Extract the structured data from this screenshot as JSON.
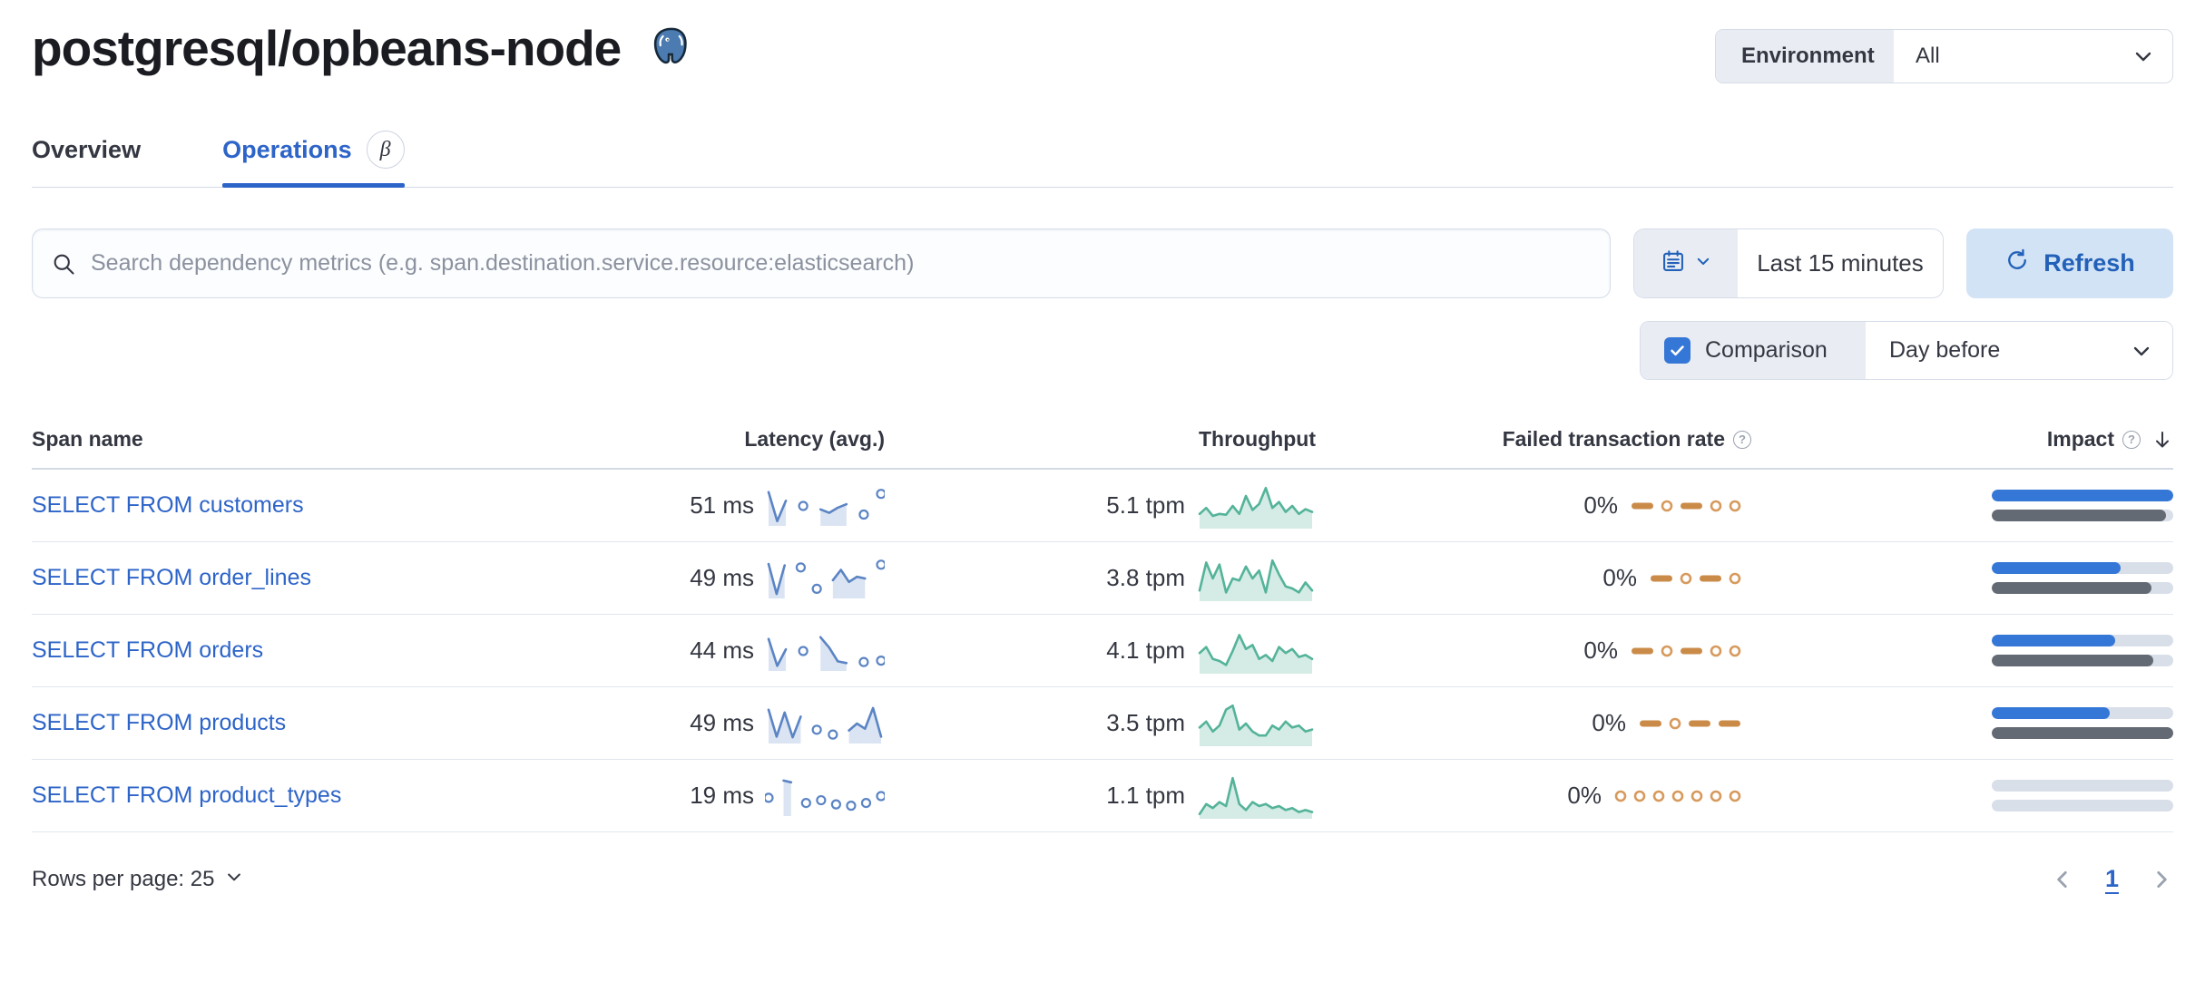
{
  "header": {
    "title": "postgresql/opbeans-node",
    "environment_label": "Environment",
    "environment_value": "All"
  },
  "tabs": [
    {
      "label": "Overview",
      "active": false
    },
    {
      "label": "Operations",
      "active": true,
      "beta": "β"
    }
  ],
  "toolbar": {
    "search_placeholder": "Search dependency metrics (e.g. span.destination.service.resource:elasticsearch)",
    "time_range": "Last 15 minutes",
    "refresh_label": "Refresh",
    "comparison_label": "Comparison",
    "comparison_value": "Day before",
    "comparison_checked": true
  },
  "icons": {
    "question": "?"
  },
  "table": {
    "columns": [
      "Span name",
      "Latency (avg.)",
      "Throughput",
      "Failed transaction rate",
      "Impact"
    ],
    "rows": [
      {
        "name": "SELECT FROM customers",
        "latency": "51 ms",
        "latency_spark": [
          0.9,
          0.06,
          0.65,
          null,
          0.5,
          null,
          0.4,
          0.3,
          0.45,
          0.55,
          null,
          0.25,
          null,
          0.85
        ],
        "throughput": "5.1 tpm",
        "throughput_spark": [
          0.3,
          0.45,
          0.25,
          0.3,
          0.28,
          0.5,
          0.3,
          0.75,
          0.4,
          0.55,
          0.95,
          0.45,
          0.6,
          0.35,
          0.5,
          0.3,
          0.42,
          0.35
        ],
        "failed_rate": "0%",
        "failed_spark": [
          "dash",
          "dot",
          "dash",
          "dot",
          "dot"
        ],
        "impact": 100,
        "impact_previous": 96
      },
      {
        "name": "SELECT FROM order_lines",
        "latency": "49 ms",
        "latency_spark": [
          0.92,
          0.05,
          0.88,
          null,
          0.82,
          null,
          0.2,
          null,
          0.45,
          0.75,
          0.4,
          0.55,
          0.5,
          null,
          0.9
        ],
        "throughput": "3.8 tpm",
        "throughput_spark": [
          0.2,
          0.9,
          0.5,
          0.85,
          0.15,
          0.5,
          0.45,
          0.8,
          0.5,
          0.7,
          0.15,
          0.95,
          0.6,
          0.3,
          0.25,
          0.15,
          0.4,
          0.2
        ],
        "failed_rate": "0%",
        "failed_spark": [
          "dash",
          "dot",
          "dash",
          "dot"
        ],
        "impact": 71,
        "impact_previous": 88
      },
      {
        "name": "SELECT FROM orders",
        "latency": "44 ms",
        "latency_spark": [
          0.85,
          0.07,
          0.55,
          null,
          0.5,
          null,
          0.9,
          0.6,
          0.2,
          0.15,
          null,
          0.18,
          null,
          0.22
        ],
        "throughput": "4.1 tpm",
        "throughput_spark": [
          0.45,
          0.6,
          0.3,
          0.25,
          0.15,
          0.5,
          0.9,
          0.55,
          0.65,
          0.3,
          0.4,
          0.25,
          0.6,
          0.45,
          0.55,
          0.35,
          0.4,
          0.3
        ],
        "failed_rate": "0%",
        "failed_spark": [
          "dash",
          "dot",
          "dash",
          "dot",
          "dot"
        ],
        "impact": 68,
        "impact_previous": 89
      },
      {
        "name": "SELECT FROM products",
        "latency": "49 ms",
        "latency_spark": [
          0.9,
          0.12,
          0.82,
          0.1,
          0.7,
          null,
          0.32,
          null,
          0.18,
          null,
          0.3,
          0.5,
          0.35,
          0.95,
          0.12
        ],
        "throughput": "3.5 tpm",
        "throughput_spark": [
          0.4,
          0.55,
          0.3,
          0.45,
          0.85,
          0.95,
          0.35,
          0.5,
          0.3,
          0.2,
          0.2,
          0.45,
          0.35,
          0.55,
          0.4,
          0.45,
          0.3,
          0.35
        ],
        "failed_rate": "0%",
        "failed_spark": [
          "dash",
          "dot",
          "dash",
          "dash"
        ],
        "impact": 65,
        "impact_previous": 100
      },
      {
        "name": "SELECT FROM product_types",
        "latency": "19 ms",
        "latency_spark": [
          0.45,
          null,
          0.95,
          0.9,
          null,
          0.3,
          null,
          0.38,
          null,
          0.26,
          null,
          0.22,
          null,
          0.3,
          null,
          0.5
        ],
        "throughput": "1.1 tpm",
        "throughput_spark": [
          0.05,
          0.3,
          0.2,
          0.35,
          0.25,
          0.95,
          0.3,
          0.15,
          0.35,
          0.25,
          0.3,
          0.2,
          0.25,
          0.15,
          0.2,
          0.1,
          0.15,
          0.1
        ],
        "failed_rate": "0%",
        "failed_spark": [
          "dot",
          "dot",
          "dot",
          "dot",
          "dot",
          "dot",
          "dot"
        ],
        "impact": 0,
        "impact_previous": 0
      }
    ]
  },
  "footer": {
    "rows_per_page": "Rows per page: 25",
    "page": "1"
  },
  "colors": {
    "accent": "#2d64c8",
    "latency_line": "#5b84c4",
    "latency_fill": "#dbe4f2",
    "throughput_line": "#54b399",
    "throughput_fill": "rgba(84,179,153,0.25)",
    "failed_dash": "#cb8b48",
    "failed_dot": "#d79a5d",
    "impact_bar": "#3577d6",
    "impact_prev": "#646a73",
    "impact_track": "#d9dfe9"
  }
}
